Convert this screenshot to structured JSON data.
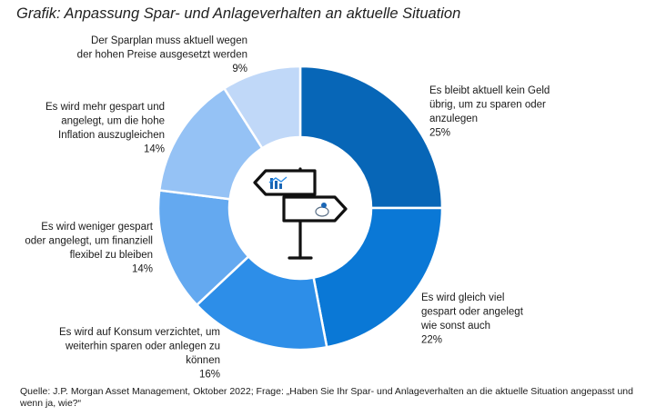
{
  "chart_data": {
    "type": "pie",
    "donut": true,
    "title": "Grafik: Anpassung Spar- und Anlageverhalten an aktuelle Situation",
    "slices": [
      {
        "lines": [
          "Es bleibt aktuell kein Geld",
          "übrig, um zu sparen oder",
          "anzulegen"
        ],
        "value": 25,
        "pct_label": "25%",
        "color": "#0766b7"
      },
      {
        "lines": [
          "Es wird gleich viel",
          "gespart oder angelegt",
          "wie sonst auch"
        ],
        "value": 22,
        "pct_label": "22%",
        "color": "#0a78d6"
      },
      {
        "lines": [
          "Es wird auf Konsum verzichtet, um",
          "weiterhin sparen oder anlegen zu",
          "können"
        ],
        "value": 16,
        "pct_label": "16%",
        "color": "#2d8ee8"
      },
      {
        "lines": [
          "Es wird weniger gespart",
          "oder angelegt, um finanziell",
          "flexibel zu bleiben"
        ],
        "value": 14,
        "pct_label": "14%",
        "color": "#64a9f0"
      },
      {
        "lines": [
          "Es wird mehr gespart und",
          "angelegt, um die hohe",
          "Inflation auszugleichen"
        ],
        "value": 14,
        "pct_label": "14%",
        "color": "#95c2f5"
      },
      {
        "lines": [
          "Der Sparplan muss aktuell wegen",
          "der hohen Preise ausgesetzt werden"
        ],
        "value": 9,
        "pct_label": "9%",
        "color": "#c0d8f8"
      }
    ],
    "source": "Quelle: J.P. Morgan Asset Management, Oktober 2022; Frage: „Haben Sie Ihr Spar- und Anlageverhalten an die aktuelle Situation angepasst und wenn ja, wie?“",
    "center_icon": "signpost-icon"
  }
}
